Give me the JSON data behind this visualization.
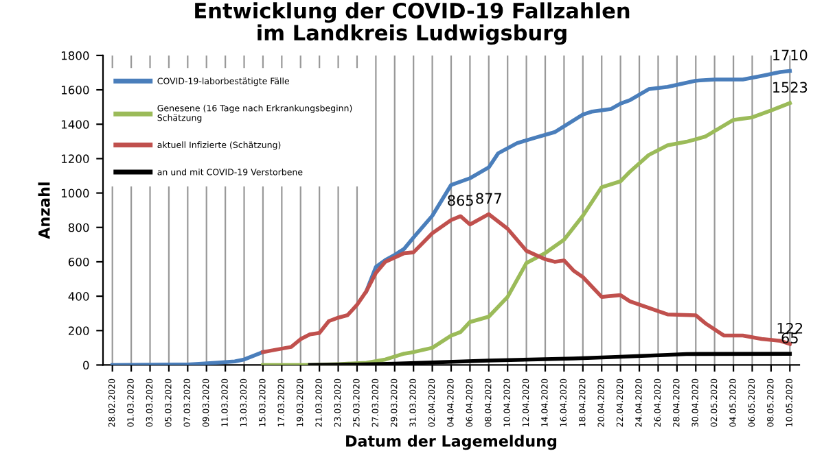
{
  "chart_data": {
    "type": "line",
    "title": "Entwicklung der COVID-19 Fallzahlen\nim Landkreis Ludwigsburg",
    "xlabel": "Datum der Lagemeldung",
    "ylabel": "Anzahl",
    "series": [
      {
        "name": "COVID-19-laborbestätigte Fälle",
        "color": "#4a7ebb",
        "x": [
          "2020-02-28",
          "2020-03-07",
          "2020-03-10",
          "2020-03-12",
          "2020-03-13",
          "2020-03-15",
          "2020-03-16",
          "2020-03-17",
          "2020-03-18",
          "2020-03-19",
          "2020-03-20",
          "2020-03-21",
          "2020-03-22",
          "2020-03-23",
          "2020-03-24",
          "2020-03-25",
          "2020-03-26",
          "2020-03-27",
          "2020-03-28",
          "2020-03-29",
          "2020-03-30",
          "2020-03-31",
          "2020-04-02",
          "2020-04-04",
          "2020-04-06",
          "2020-04-08",
          "2020-04-09",
          "2020-04-11",
          "2020-04-13",
          "2020-04-15",
          "2020-04-18",
          "2020-04-19",
          "2020-04-21",
          "2020-04-22",
          "2020-04-23",
          "2020-04-25",
          "2020-04-27",
          "2020-04-30",
          "2020-05-02",
          "2020-05-05",
          "2020-05-07",
          "2020-05-09",
          "2020-05-10"
        ],
        "values": [
          0,
          3,
          13,
          21,
          32,
          75,
          null,
          null,
          null,
          null,
          null,
          null,
          null,
          null,
          null,
          null,
          430,
          570,
          610,
          640,
          675,
          741,
          868,
          1047,
          1086,
          1149,
          1231,
          1290,
          1323,
          1354,
          1456,
          1474,
          1489,
          1520,
          1540,
          1604,
          1617,
          1653,
          1660,
          1660,
          1681,
          1704,
          1710
        ]
      },
      {
        "name": "Genesene (16 Tage nach Erkrankungsbeginn)\nSchätzung",
        "color": "#9bbb59",
        "x": [
          "2020-03-15",
          "2020-03-20",
          "2020-03-23",
          "2020-03-26",
          "2020-03-28",
          "2020-03-30",
          "2020-03-31",
          "2020-04-02",
          "2020-04-04",
          "2020-04-05",
          "2020-04-06",
          "2020-04-08",
          "2020-04-10",
          "2020-04-12",
          "2020-04-14",
          "2020-04-16",
          "2020-04-18",
          "2020-04-20",
          "2020-04-22",
          "2020-04-23",
          "2020-04-25",
          "2020-04-27",
          "2020-04-29",
          "2020-05-01",
          "2020-05-04",
          "2020-05-06",
          "2020-05-08",
          "2020-05-10"
        ],
        "values": [
          0,
          0,
          5,
          13,
          32,
          66,
          75,
          100,
          171,
          192,
          250,
          281,
          396,
          593,
          651,
          728,
          868,
          1034,
          1068,
          1124,
          1221,
          1277,
          1298,
          1328,
          1425,
          1440,
          1480,
          1523
        ]
      },
      {
        "name": "aktuell Infizierte (Schätzung)",
        "color": "#c0504d",
        "x": [
          "2020-03-15",
          "2020-03-16",
          "2020-03-17",
          "2020-03-18",
          "2020-03-19",
          "2020-03-20",
          "2020-03-21",
          "2020-03-22",
          "2020-03-23",
          "2020-03-24",
          "2020-03-25",
          "2020-03-26",
          "2020-03-27",
          "2020-03-28",
          "2020-03-29",
          "2020-03-30",
          "2020-03-31",
          "2020-04-02",
          "2020-04-04",
          "2020-04-05",
          "2020-04-06",
          "2020-04-08",
          "2020-04-10",
          "2020-04-12",
          "2020-04-14",
          "2020-04-15",
          "2020-04-16",
          "2020-04-17",
          "2020-04-18",
          "2020-04-20",
          "2020-04-22",
          "2020-04-23",
          "2020-04-25",
          "2020-04-27",
          "2020-04-30",
          "2020-05-01",
          "2020-05-03",
          "2020-05-05",
          "2020-05-07",
          "2020-05-09",
          "2020-05-10"
        ],
        "values": [
          75,
          85,
          95,
          105,
          150,
          178,
          186,
          255,
          275,
          290,
          350,
          430,
          535,
          600,
          625,
          650,
          655,
          766,
          843,
          865,
          817,
          877,
          792,
          664,
          615,
          600,
          608,
          549,
          511,
          396,
          406,
          370,
          332,
          294,
          289,
          243,
          171,
          171,
          151,
          140,
          122
        ]
      },
      {
        "name": "an und mit COVID-19 Verstorbene",
        "color": "#000000",
        "x": [
          "2020-03-20",
          "2020-03-25",
          "2020-03-29",
          "2020-04-02",
          "2020-04-08",
          "2020-04-17",
          "2020-04-21",
          "2020-04-27",
          "2020-04-29",
          "2020-05-10"
        ],
        "values": [
          0,
          3,
          8,
          15,
          26,
          38,
          46,
          59,
          64,
          65
        ]
      }
    ],
    "xlim": [
      "2020-02-27",
      "2020-05-11"
    ],
    "xticks": [
      {
        "value": "2020-02-28",
        "label": "28.02.2020"
      },
      {
        "value": "2020-03-01",
        "label": "01.03.2020"
      },
      {
        "value": "2020-03-03",
        "label": "03.03.2020"
      },
      {
        "value": "2020-03-05",
        "label": "05.03.2020"
      },
      {
        "value": "2020-03-07",
        "label": "07.03.2020"
      },
      {
        "value": "2020-03-09",
        "label": "09.03.2020"
      },
      {
        "value": "2020-03-11",
        "label": "11.03.2020"
      },
      {
        "value": "2020-03-13",
        "label": "13.03.2020"
      },
      {
        "value": "2020-03-15",
        "label": "15.03.2020"
      },
      {
        "value": "2020-03-17",
        "label": "17.03.2020"
      },
      {
        "value": "2020-03-19",
        "label": "19.03.2020"
      },
      {
        "value": "2020-03-21",
        "label": "21.03.2020"
      },
      {
        "value": "2020-03-23",
        "label": "23.03.2020"
      },
      {
        "value": "2020-03-25",
        "label": "25.03.2020"
      },
      {
        "value": "2020-03-27",
        "label": "27.03.2020"
      },
      {
        "value": "2020-03-29",
        "label": "29.03.2020"
      },
      {
        "value": "2020-03-31",
        "label": "31.03.2020"
      },
      {
        "value": "2020-04-02",
        "label": "02.04.2020"
      },
      {
        "value": "2020-04-04",
        "label": "04.04.2020"
      },
      {
        "value": "2020-04-06",
        "label": "06.04.2020"
      },
      {
        "value": "2020-04-08",
        "label": "08.04.2020"
      },
      {
        "value": "2020-04-10",
        "label": "10.04.2020"
      },
      {
        "value": "2020-04-12",
        "label": "12.04.2020"
      },
      {
        "value": "2020-04-14",
        "label": "14.04.2020"
      },
      {
        "value": "2020-04-16",
        "label": "16.04.2020"
      },
      {
        "value": "2020-04-18",
        "label": "18.04.2020"
      },
      {
        "value": "2020-04-20",
        "label": "20.04.2020"
      },
      {
        "value": "2020-04-22",
        "label": "22.04.2020"
      },
      {
        "value": "2020-04-24",
        "label": "24.04.2020"
      },
      {
        "value": "2020-04-26",
        "label": "26.04.2020"
      },
      {
        "value": "2020-04-28",
        "label": "28.04.2020"
      },
      {
        "value": "2020-04-30",
        "label": "30.04.2020"
      },
      {
        "value": "2020-05-02",
        "label": "02.05.2020"
      },
      {
        "value": "2020-05-04",
        "label": "04.05.2020"
      },
      {
        "value": "2020-05-06",
        "label": "06.05.2020"
      },
      {
        "value": "2020-05-08",
        "label": "08.05.2020"
      },
      {
        "value": "2020-05-10",
        "label": "10.05.2020"
      }
    ],
    "ylim": [
      0,
      1800
    ],
    "yticks": [
      0,
      200,
      400,
      600,
      800,
      1000,
      1200,
      1400,
      1600,
      1800
    ],
    "grid": "x",
    "legend": "top left",
    "marker": "none",
    "line_style": "solid",
    "annotations": [
      {
        "text": "1710",
        "x": "2020-05-10",
        "y": 1710
      },
      {
        "text": "1523",
        "x": "2020-05-10",
        "y": 1523
      },
      {
        "text": "865",
        "x": "2020-04-05",
        "y": 865
      },
      {
        "text": "877",
        "x": "2020-04-08",
        "y": 877
      },
      {
        "text": "122",
        "x": "2020-05-10",
        "y": 122
      },
      {
        "text": "65",
        "x": "2020-05-10",
        "y": 65
      }
    ]
  }
}
